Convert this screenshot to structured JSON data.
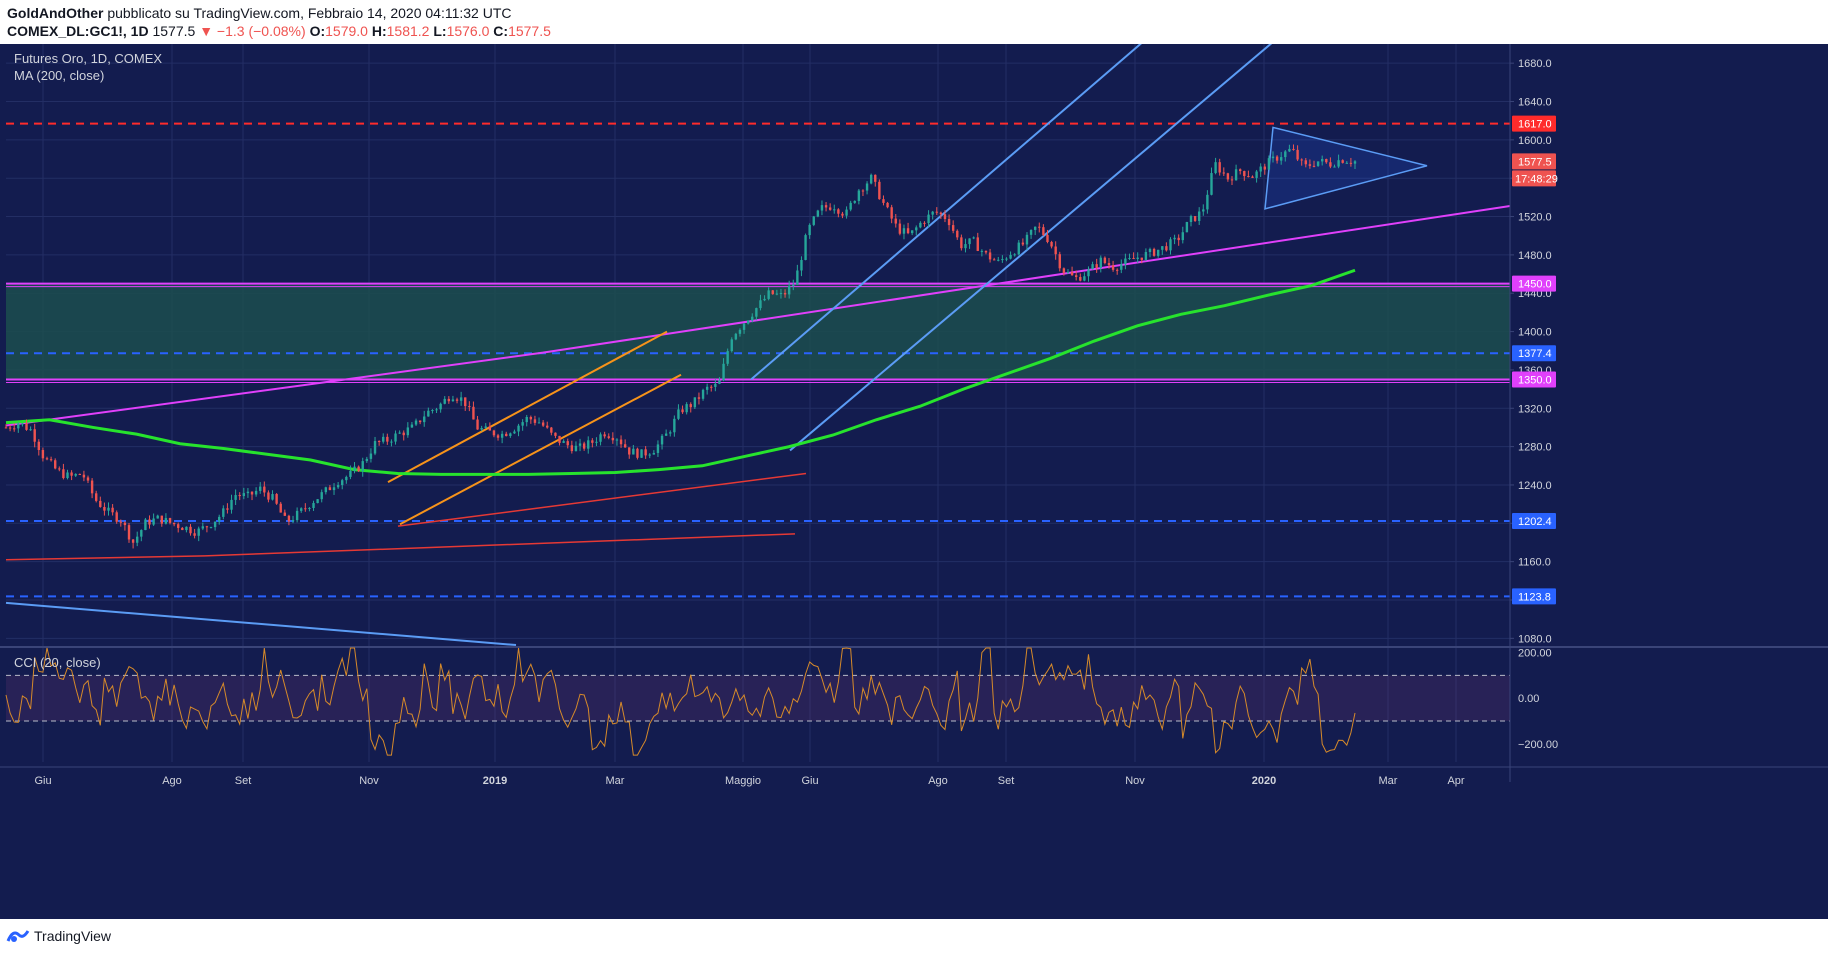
{
  "header": {
    "author": "GoldAndOther",
    "published_text": "pubblicato su TradingView.com, Febbraio 14, 2020 04:11:32 UTC",
    "symbol": "COMEX_DL:GC1!, 1D",
    "last": "1577.5",
    "change": "▼ −1.3 (−0.08%)",
    "o_label": "O:",
    "o_value": "1579.0",
    "h_label": "H:",
    "h_value": "1581.2",
    "l_label": "L:",
    "l_value": "1576.0",
    "c_label": "C:",
    "c_value": "1577.5"
  },
  "legend": {
    "title": "Futures Oro, 1D, COMEX",
    "ma": "MA (200, close)",
    "cci": "CCI (20, close)"
  },
  "footer": {
    "brand": "TradingView"
  },
  "colors": {
    "background": "#131c4f",
    "candle_up": "#26a69a",
    "candle_down": "#ef5350",
    "ma": "#27e32d",
    "trend_magenta": "#e040fb",
    "channel_blue": "#5b9cf5",
    "channel_orange": "#f7931a",
    "support_zone": "#1c4e4e",
    "cci_line": "#d68a2a"
  },
  "chart_data": {
    "type": "candlestick",
    "title": "Futures Oro, 1D, COMEX",
    "x_tick_labels": [
      "Giu",
      "Ago",
      "Set",
      "Nov",
      "2019",
      "Mar",
      "Maggio",
      "Giu",
      "Ago",
      "Set",
      "Nov",
      "2020",
      "Mar",
      "Apr"
    ],
    "y_ticks": [
      1080,
      1120,
      1160,
      1200,
      1240,
      1280,
      1320,
      1360,
      1400,
      1440,
      1480,
      1520,
      1560,
      1600,
      1640,
      1680
    ],
    "ylim": [
      1072,
      1700
    ],
    "price_labels": [
      {
        "value": 1617.0,
        "text": "1617.0",
        "color": "#ff2b2b"
      },
      {
        "value": 1577.5,
        "text": "1577.5",
        "color": "#ef5350"
      },
      {
        "value": 1450.0,
        "text": "1450.0",
        "color": "#e040fb"
      },
      {
        "value": 1377.4,
        "text": "1377.4",
        "color": "#2962ff"
      },
      {
        "value": 1350.0,
        "text": "1350.0",
        "color": "#e040fb"
      },
      {
        "value": 1202.4,
        "text": "1202.4",
        "color": "#2962ff"
      },
      {
        "value": 1123.8,
        "text": "1123.8",
        "color": "#2962ff"
      }
    ],
    "countdown": "17:48:29",
    "horizontal_levels": [
      {
        "value": 1617.0,
        "style": "dashed",
        "color": "#ff2b2b"
      },
      {
        "value": 1450.0,
        "style": "solid",
        "color": "#e040fb"
      },
      {
        "value": 1377.4,
        "style": "dashed",
        "color": "#2962ff"
      },
      {
        "value": 1350.0,
        "style": "solid",
        "color": "#e040fb"
      },
      {
        "value": 1202.4,
        "style": "dashed",
        "color": "#2962ff"
      },
      {
        "value": 1123.8,
        "style": "dashed",
        "color": "#2962ff"
      }
    ],
    "support_zone": [
      1350,
      1450
    ],
    "price_series": [
      1300,
      1305,
      1297,
      1268,
      1255,
      1248,
      1252,
      1225,
      1212,
      1204,
      1180,
      1201,
      1205,
      1200,
      1196,
      1191,
      1199,
      1210,
      1230,
      1228,
      1236,
      1225,
      1201,
      1210,
      1222,
      1232,
      1244,
      1250,
      1262,
      1283,
      1287,
      1294,
      1300,
      1315,
      1322,
      1335,
      1328,
      1300,
      1295,
      1293,
      1300,
      1310,
      1305,
      1290,
      1282,
      1278,
      1284,
      1295,
      1290,
      1275,
      1272,
      1278,
      1294,
      1318,
      1325,
      1340,
      1344,
      1395,
      1410,
      1425,
      1440,
      1437,
      1452,
      1505,
      1528,
      1532,
      1522,
      1548,
      1560,
      1532,
      1508,
      1500,
      1515,
      1525,
      1518,
      1490,
      1494,
      1480,
      1472,
      1483,
      1492,
      1510,
      1495,
      1465,
      1455,
      1462,
      1474,
      1468,
      1472,
      1478,
      1482,
      1488,
      1495,
      1515,
      1525,
      1575,
      1560,
      1568,
      1562,
      1574,
      1583,
      1590,
      1571,
      1578,
      1575,
      1580,
      1577.5
    ],
    "ma_200": [
      1305,
      1308,
      1300,
      1293,
      1283,
      1278,
      1272,
      1266,
      1256,
      1252,
      1251,
      1251,
      1251,
      1252,
      1253,
      1256,
      1260,
      1270,
      1280,
      1292,
      1308,
      1322,
      1340,
      1356,
      1372,
      1390,
      1406,
      1418,
      1427,
      1438,
      1448,
      1464
    ],
    "cci": {
      "ylim": [
        -280,
        220
      ],
      "levels": [
        100,
        -100
      ],
      "ticks": [
        200,
        0,
        -200
      ],
      "tick_labels": [
        "200.00",
        "0.00",
        "−200.00"
      ]
    }
  }
}
